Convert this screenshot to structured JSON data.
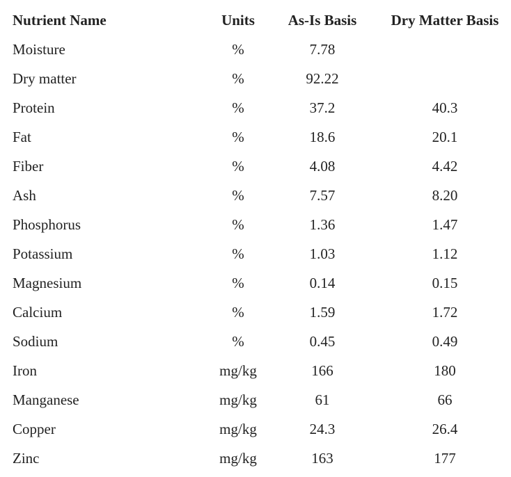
{
  "table": {
    "header": [
      "Nutrient Name",
      "Units",
      "As-Is Basis",
      "Dry Matter Basis"
    ],
    "rows": [
      [
        "Moisture",
        "%",
        "7.78",
        null
      ],
      [
        "Dry matter",
        "%",
        "92.22",
        null
      ],
      [
        "Protein",
        "%",
        "37.2",
        "40.3"
      ],
      [
        "Fat",
        "%",
        "18.6",
        "20.1"
      ],
      [
        "Fiber",
        "%",
        "4.08",
        "4.42"
      ],
      [
        "Ash",
        "%",
        "7.57",
        "8.20"
      ],
      [
        "Phosphorus",
        "%",
        "1.36",
        "1.47"
      ],
      [
        "Potassium",
        "%",
        "1.03",
        "1.12"
      ],
      [
        "Magnesium",
        "%",
        "0.14",
        "0.15"
      ],
      [
        "Calcium",
        "%",
        "1.59",
        "1.72"
      ],
      [
        "Sodium",
        "%",
        "0.45",
        "0.49"
      ],
      [
        "Iron",
        "mg/kg",
        "166",
        "180"
      ],
      [
        "Manganese",
        "mg/kg",
        "61",
        "66"
      ],
      [
        "Copper",
        "mg/kg",
        "24.3",
        "26.4"
      ],
      [
        "Zinc",
        "mg/kg",
        "163",
        "177"
      ]
    ]
  }
}
